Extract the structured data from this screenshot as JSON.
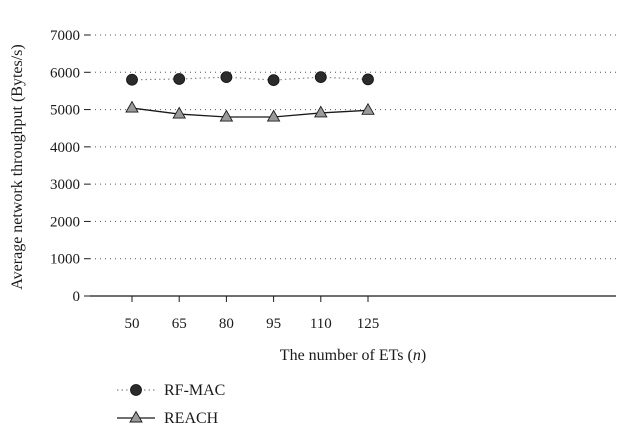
{
  "chart_data": {
    "type": "line",
    "xlabel_prefix": "The number of ETs (",
    "xlabel_var": "n",
    "xlabel_suffix": ")",
    "ylabel": "Average network throughput (Bytes/s)",
    "categories": [
      "50",
      "65",
      "80",
      "95",
      "110",
      "125"
    ],
    "ylim": [
      0,
      7000
    ],
    "yticks": [
      0,
      1000,
      2000,
      3000,
      4000,
      5000,
      6000,
      7000
    ],
    "grid": "horizontal dotted",
    "legend": "bottom-left",
    "series": [
      {
        "name": "RF-MAC",
        "marker": "circle",
        "line": "dotted",
        "color": "#2b2b2b",
        "values": [
          5800,
          5820,
          5870,
          5790,
          5870,
          5810
        ]
      },
      {
        "name": "REACH",
        "marker": "triangle",
        "line": "solid",
        "color": "#9a9a9a",
        "values": [
          5040,
          4880,
          4800,
          4800,
          4910,
          4980
        ]
      }
    ]
  }
}
